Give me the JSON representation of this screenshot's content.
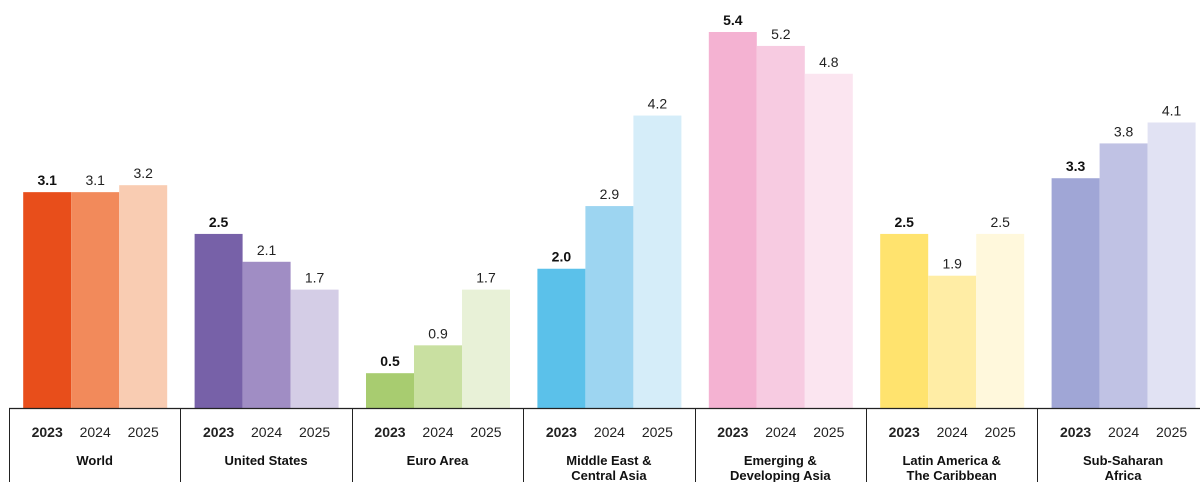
{
  "chart_data": {
    "type": "bar",
    "title": "",
    "xlabel": "",
    "ylabel": "",
    "ylim": [
      0,
      5.4
    ],
    "grid": false,
    "years": [
      "2023",
      "2024",
      "2025"
    ],
    "groups": [
      {
        "label_lines": [
          "World"
        ],
        "values": [
          3.1,
          3.1,
          3.2
        ],
        "value_labels": [
          "3.1",
          "3.1",
          "3.2"
        ],
        "colors": [
          "#E84E1B",
          "#F28A5B",
          "#F9CCB2"
        ]
      },
      {
        "label_lines": [
          "United States"
        ],
        "values": [
          2.5,
          2.1,
          1.7
        ],
        "value_labels": [
          "2.5",
          "2.1",
          "1.7"
        ],
        "colors": [
          "#7761A8",
          "#A08DC4",
          "#D4CDE6"
        ]
      },
      {
        "label_lines": [
          "Euro Area"
        ],
        "values": [
          0.5,
          0.9,
          1.7
        ],
        "value_labels": [
          "0.5",
          "0.9",
          "1.7"
        ],
        "colors": [
          "#A8CC70",
          "#C9E0A1",
          "#E8F1D7"
        ]
      },
      {
        "label_lines": [
          "Middle East &",
          "Central Asia"
        ],
        "values": [
          2.0,
          2.9,
          4.2
        ],
        "value_labels": [
          "2.0",
          "2.9",
          "4.2"
        ],
        "colors": [
          "#5BC1EA",
          "#9DD5F1",
          "#D5EDF9"
        ]
      },
      {
        "label_lines": [
          "Emerging &",
          "Developing Asia"
        ],
        "values": [
          5.4,
          5.2,
          4.8
        ],
        "value_labels": [
          "5.4",
          "5.2",
          "4.8"
        ],
        "colors": [
          "#F4B2D2",
          "#F7CBE1",
          "#FBE5F0"
        ]
      },
      {
        "label_lines": [
          "Latin America &",
          "The Caribbean"
        ],
        "values": [
          2.5,
          1.9,
          2.5
        ],
        "value_labels": [
          "2.5",
          "1.9",
          "2.5"
        ],
        "colors": [
          "#FFE36E",
          "#FFEDA5",
          "#FFF8DC"
        ]
      },
      {
        "label_lines": [
          "Sub-Saharan",
          "Africa"
        ],
        "values": [
          3.3,
          3.8,
          4.1
        ],
        "value_labels": [
          "3.3",
          "3.8",
          "4.1"
        ],
        "colors": [
          "#A0A6D6",
          "#C0C2E4",
          "#E1E2F3"
        ]
      }
    ]
  }
}
